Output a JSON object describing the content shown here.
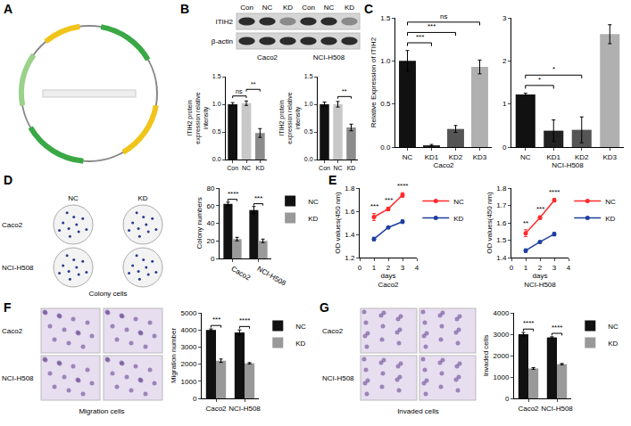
{
  "panels": {
    "letters": [
      "A",
      "B",
      "C",
      "D",
      "E",
      "F",
      "G"
    ],
    "blot": {
      "rows": [
        "ITIH2",
        "β-actin"
      ],
      "lanes": [
        "Con",
        "NC",
        "KD",
        "Con",
        "NC",
        "KD"
      ],
      "groups": [
        "Caco2",
        "NCI-H508"
      ]
    },
    "colony": {
      "columns": [
        "NC",
        "KD"
      ],
      "rows": [
        "Caco2",
        "NCI-H508"
      ],
      "caption": "Colony cells"
    },
    "migration": {
      "rows": [
        "Caco2",
        "NCI-H508"
      ],
      "caption": "Migration cells"
    },
    "invasion": {
      "rows": [
        "Caco2",
        "NCI-H508"
      ],
      "caption": "Invaded cells"
    }
  },
  "chart_data": [
    {
      "type": "bar",
      "categories": [
        "Con",
        "NC",
        "KD"
      ],
      "values": [
        1.0,
        1.02,
        0.48
      ],
      "errors": [
        0.03,
        0.04,
        0.08
      ],
      "colors": [
        "#111111",
        "#c8c8c8",
        "#8c8c8c"
      ],
      "ylabel": "ITIH2 protein expression relative intensity",
      "ylim": [
        0,
        1.5
      ],
      "yticks": [
        {
          "value": 0,
          "label": "0.0"
        },
        {
          "value": 0.5,
          "label": "0.5"
        },
        {
          "value": 1,
          "label": "1.0"
        },
        {
          "value": 1.5,
          "label": "1.5"
        }
      ],
      "grid": false,
      "annotations": [
        {
          "text": "ns",
          "between": [
            "Con",
            "NC"
          ]
        },
        {
          "text": "**",
          "between": [
            "NC",
            "KD"
          ]
        }
      ]
    },
    {
      "type": "bar",
      "categories": [
        "Con",
        "NC",
        "KD"
      ],
      "values": [
        1.0,
        1.0,
        0.58
      ],
      "errors": [
        0.04,
        0.05,
        0.06
      ],
      "colors": [
        "#111111",
        "#c8c8c8",
        "#8c8c8c"
      ],
      "ylabel": "ITIH2 protein expression relative intensity",
      "ylim": [
        0,
        1.5
      ],
      "yticks": [
        {
          "value": 0,
          "label": "0.0"
        },
        {
          "value": 0.5,
          "label": "0.5"
        },
        {
          "value": 1,
          "label": "1.0"
        },
        {
          "value": 1.5,
          "label": "1.5"
        }
      ],
      "grid": false,
      "annotations": [
        {
          "text": "**",
          "between": [
            "NC",
            "KD"
          ]
        }
      ]
    },
    {
      "type": "bar",
      "categories": [
        "NC",
        "KD1",
        "KD2",
        "KD3"
      ],
      "values": [
        1.0,
        0.02,
        0.21,
        0.93
      ],
      "errors": [
        0.12,
        0.01,
        0.04,
        0.08
      ],
      "colors": [
        "#111111",
        "#222222",
        "#555555",
        "#b0b0b0"
      ],
      "xlabel": "Caco2",
      "ylabel": "Relative Expression of ITIH2",
      "ylim": [
        0,
        1.5
      ],
      "yticks": [
        {
          "value": 0,
          "label": "0.0"
        },
        {
          "value": 0.5,
          "label": "0.5"
        },
        {
          "value": 1,
          "label": "1.0"
        },
        {
          "value": 1.5,
          "label": "1.5"
        }
      ],
      "grid": false,
      "annotations": [
        {
          "text": "***",
          "between": [
            "NC",
            "KD1"
          ]
        },
        {
          "text": "***",
          "between": [
            "NC",
            "KD2"
          ]
        },
        {
          "text": "ns",
          "between": [
            "NC",
            "KD3"
          ]
        }
      ]
    },
    {
      "type": "bar",
      "categories": [
        "NC",
        "KD1",
        "KD2",
        "KD3"
      ],
      "values": [
        1.22,
        0.38,
        0.4,
        2.62
      ],
      "errors": [
        0.03,
        0.25,
        0.3,
        0.22
      ],
      "colors": [
        "#111111",
        "#222222",
        "#555555",
        "#b0b0b0"
      ],
      "xlabel": "NCI-H508",
      "ylim": [
        0,
        3
      ],
      "yticks": [
        0,
        1,
        2,
        3
      ],
      "grid": false,
      "annotations": [
        {
          "text": "*",
          "between": [
            "NC",
            "KD1"
          ]
        },
        {
          "text": "*",
          "between": [
            "NC",
            "KD2"
          ]
        }
      ]
    },
    {
      "type": "bar",
      "categories": [
        "Caco2",
        "NCI-H508"
      ],
      "ylabel": "Colony numbers",
      "ylim": [
        0,
        80
      ],
      "yticks": [
        0,
        20,
        40,
        60,
        80
      ],
      "legend": "right",
      "grid": false,
      "series": [
        {
          "name": "NC",
          "color": "#111111",
          "values": [
            62,
            55
          ],
          "errors": [
            2,
            4
          ]
        },
        {
          "name": "KD",
          "color": "#999999",
          "values": [
            22,
            20
          ],
          "errors": [
            2,
            2
          ]
        }
      ],
      "annotations": [
        {
          "text": "****",
          "category": "Caco2"
        },
        {
          "text": "***",
          "category": "NCI-H508"
        }
      ]
    },
    {
      "type": "line",
      "x": [
        1,
        2,
        3
      ],
      "xlabel": "days",
      "subtitle": "Caco2",
      "ylabel": "OD values(450 nm)",
      "xlim": [
        0,
        4
      ],
      "xticks": [
        0,
        1,
        2,
        3,
        4
      ],
      "ylim": [
        1.2,
        1.8
      ],
      "yticks": [
        1.2,
        1.4,
        1.6,
        1.8
      ],
      "legend": "right",
      "grid": false,
      "series": [
        {
          "name": "NC",
          "color": "#ff2a2a",
          "marker": "circle",
          "line_style": "solid",
          "values": [
            1.55,
            1.62,
            1.74
          ],
          "errors": [
            0.03,
            0.015,
            0.02
          ]
        },
        {
          "name": "KD",
          "color": "#1f3f9f",
          "marker": "circle",
          "line_style": "solid",
          "values": [
            1.36,
            1.46,
            1.51
          ],
          "errors": [
            0.015,
            0.005,
            0.015
          ]
        }
      ],
      "annotations": [
        {
          "text": "***",
          "x": 1
        },
        {
          "text": "***",
          "x": 2
        },
        {
          "text": "****",
          "x": 3
        }
      ]
    },
    {
      "type": "line",
      "x": [
        1,
        2,
        3
      ],
      "xlabel": "days",
      "subtitle": "NCI-H508",
      "ylabel": "OD values(450 nm)",
      "xlim": [
        0,
        4
      ],
      "xticks": [
        0,
        1,
        2,
        3,
        4
      ],
      "ylim": [
        1.4,
        1.8
      ],
      "yticks": [
        1.4,
        1.5,
        1.6,
        1.7,
        1.8
      ],
      "legend": "right",
      "grid": false,
      "series": [
        {
          "name": "NC",
          "color": "#ff2a2a",
          "marker": "circle",
          "line_style": "solid",
          "values": [
            1.54,
            1.63,
            1.73
          ],
          "errors": [
            0.02,
            0.01,
            0.01
          ]
        },
        {
          "name": "KD",
          "color": "#1f3f9f",
          "marker": "circle",
          "line_style": "solid",
          "values": [
            1.44,
            1.49,
            1.535
          ],
          "errors": [
            0.01,
            0.005,
            0.01
          ]
        }
      ],
      "annotations": [
        {
          "text": "**",
          "x": 1
        },
        {
          "text": "***",
          "x": 2
        },
        {
          "text": "****",
          "x": 3
        }
      ]
    },
    {
      "type": "bar",
      "categories": [
        "Caco2",
        "NCI-H508"
      ],
      "ylabel": "Migration number",
      "ylim": [
        0,
        5000
      ],
      "yticks": [
        0,
        1000,
        2000,
        3000,
        4000,
        5000
      ],
      "legend": "right",
      "grid": false,
      "series": [
        {
          "name": "NC",
          "color": "#111111",
          "values": [
            4000,
            3850
          ],
          "errors": [
            60,
            150
          ]
        },
        {
          "name": "KD",
          "color": "#999999",
          "values": [
            2200,
            2050
          ],
          "errors": [
            100,
            40
          ]
        }
      ],
      "annotations": [
        {
          "text": "***",
          "category": "Caco2"
        },
        {
          "text": "****",
          "category": "NCI-H508"
        }
      ]
    },
    {
      "type": "bar",
      "categories": [
        "Caco2",
        "NCI-H508"
      ],
      "ylabel": "Invaded cells",
      "ylim": [
        0,
        4000
      ],
      "yticks": [
        0,
        1000,
        2000,
        3000,
        4000
      ],
      "legend": "right",
      "grid": false,
      "series": [
        {
          "name": "NC",
          "color": "#111111",
          "values": [
            3000,
            2850
          ],
          "errors": [
            80,
            30
          ]
        },
        {
          "name": "KD",
          "color": "#999999",
          "values": [
            1400,
            1600
          ],
          "errors": [
            40,
            30
          ]
        }
      ],
      "annotations": [
        {
          "text": "****",
          "category": "Caco2"
        },
        {
          "text": "****",
          "category": "NCI-H508"
        }
      ]
    }
  ]
}
